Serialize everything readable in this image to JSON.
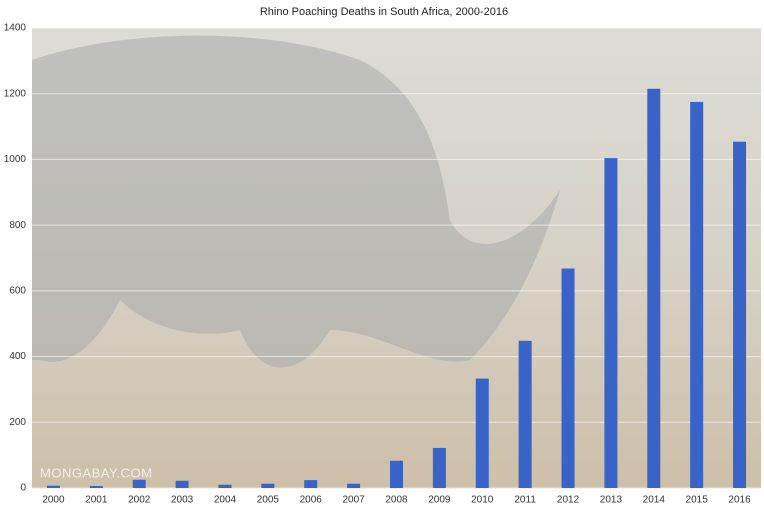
{
  "chart_data": {
    "type": "bar",
    "title": "Rhino Poaching Deaths in South Africa, 2000-2016",
    "watermark": "MONGABAY.COM",
    "categories": [
      "2000",
      "2001",
      "2002",
      "2003",
      "2004",
      "2005",
      "2006",
      "2007",
      "2008",
      "2009",
      "2010",
      "2011",
      "2012",
      "2013",
      "2014",
      "2015",
      "2016"
    ],
    "values": [
      7,
      6,
      25,
      22,
      10,
      13,
      24,
      13,
      83,
      122,
      333,
      448,
      668,
      1004,
      1215,
      1175,
      1054
    ],
    "color": "#3a63c8",
    "ylim": [
      0,
      1400
    ],
    "yticks": [
      0,
      200,
      400,
      600,
      800,
      1000,
      1200,
      1400
    ],
    "grid": true
  }
}
